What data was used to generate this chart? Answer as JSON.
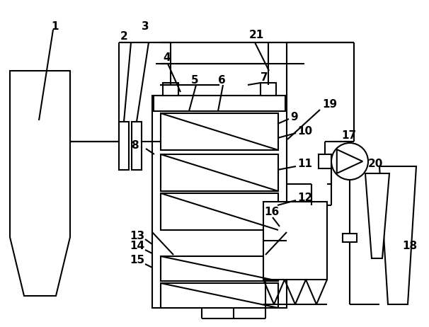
{
  "bg": "#ffffff",
  "lc": "#000000",
  "lw": 1.5,
  "fw": "bold",
  "fs": 11
}
